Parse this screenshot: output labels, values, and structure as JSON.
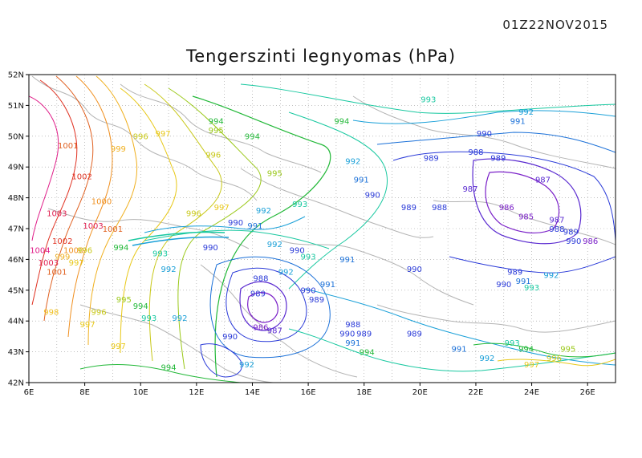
{
  "timestamp": "01Z22NOV2015",
  "title": "Tengerszinti legnyomas (hPa)",
  "map": {
    "lon_range": [
      6,
      27
    ],
    "lat_range": [
      42,
      52
    ],
    "lon_ticks": [
      "6E",
      "8E",
      "10E",
      "12E",
      "14E",
      "16E",
      "18E",
      "20E",
      "22E",
      "24E",
      "26E"
    ],
    "lat_ticks": [
      "52N",
      "51N",
      "50N",
      "49N",
      "48N",
      "47N",
      "46N",
      "45N",
      "44N",
      "43N",
      "42N"
    ],
    "grid": true,
    "field": "sea level pressure",
    "units": "hPa",
    "color_scale": [
      "#7a20c8",
      "#2a3ad8",
      "#1aa0d8",
      "#18c8a0",
      "#22b838",
      "#9ac818",
      "#e8c818",
      "#f09020",
      "#e03020",
      "#e0208a"
    ],
    "isobar_labels": [
      {
        "text": "993",
        "lon": 20.3,
        "lat": 51.1,
        "color": "#18c8a0"
      },
      {
        "text": "994",
        "lon": 12.7,
        "lat": 50.4,
        "color": "#22b838"
      },
      {
        "text": "994",
        "lon": 17.2,
        "lat": 50.4,
        "color": "#22b838"
      },
      {
        "text": "994",
        "lon": 14.0,
        "lat": 49.9,
        "color": "#22b838"
      },
      {
        "text": "995",
        "lon": 12.7,
        "lat": 50.1,
        "color": "#9ac818"
      },
      {
        "text": "996",
        "lon": 10.0,
        "lat": 49.9,
        "color": "#c8c818"
      },
      {
        "text": "997",
        "lon": 10.8,
        "lat": 50.0,
        "color": "#e8c818"
      },
      {
        "text": "996",
        "lon": 12.6,
        "lat": 49.3,
        "color": "#c8c818"
      },
      {
        "text": "995",
        "lon": 14.8,
        "lat": 48.7,
        "color": "#9ac818"
      },
      {
        "text": "999",
        "lon": 9.2,
        "lat": 49.5,
        "color": "#f0b020"
      },
      {
        "text": "1001",
        "lon": 7.4,
        "lat": 49.6,
        "color": "#e06020"
      },
      {
        "text": "1002",
        "lon": 7.9,
        "lat": 48.6,
        "color": "#e03020"
      },
      {
        "text": "1000",
        "lon": 8.6,
        "lat": 47.8,
        "color": "#f09020"
      },
      {
        "text": "1003",
        "lon": 7.0,
        "lat": 47.4,
        "color": "#e02050"
      },
      {
        "text": "1003",
        "lon": 8.3,
        "lat": 47.0,
        "color": "#e02050"
      },
      {
        "text": "1001",
        "lon": 9.0,
        "lat": 46.9,
        "color": "#e06020"
      },
      {
        "text": "1002",
        "lon": 7.2,
        "lat": 46.5,
        "color": "#e03020"
      },
      {
        "text": "1004",
        "lon": 6.4,
        "lat": 46.2,
        "color": "#e0208a"
      },
      {
        "text": "1000",
        "lon": 7.6,
        "lat": 46.2,
        "color": "#f09020"
      },
      {
        "text": "999",
        "lon": 7.2,
        "lat": 46.0,
        "color": "#f0b020"
      },
      {
        "text": "1003",
        "lon": 6.7,
        "lat": 45.8,
        "color": "#e02050"
      },
      {
        "text": "1001",
        "lon": 7.0,
        "lat": 45.5,
        "color": "#e06020"
      },
      {
        "text": "997",
        "lon": 7.7,
        "lat": 45.8,
        "color": "#e8c818"
      },
      {
        "text": "996",
        "lon": 8.0,
        "lat": 46.2,
        "color": "#c8c818"
      },
      {
        "text": "994",
        "lon": 9.3,
        "lat": 46.3,
        "color": "#22b838"
      },
      {
        "text": "993",
        "lon": 10.7,
        "lat": 46.1,
        "color": "#18c8a0"
      },
      {
        "text": "992",
        "lon": 11.0,
        "lat": 45.6,
        "color": "#1aa0d8"
      },
      {
        "text": "996",
        "lon": 11.9,
        "lat": 47.4,
        "color": "#c8c818"
      },
      {
        "text": "997",
        "lon": 12.9,
        "lat": 47.6,
        "color": "#e8c818"
      },
      {
        "text": "992",
        "lon": 14.4,
        "lat": 47.5,
        "color": "#1aa0d8"
      },
      {
        "text": "993",
        "lon": 15.7,
        "lat": 47.7,
        "color": "#18c8a0"
      },
      {
        "text": "991",
        "lon": 14.1,
        "lat": 47.0,
        "color": "#1a70d8"
      },
      {
        "text": "990",
        "lon": 13.4,
        "lat": 47.1,
        "color": "#2a3ad8"
      },
      {
        "text": "990",
        "lon": 15.6,
        "lat": 46.2,
        "color": "#2a3ad8"
      },
      {
        "text": "992",
        "lon": 14.8,
        "lat": 46.4,
        "color": "#1aa0d8"
      },
      {
        "text": "993",
        "lon": 16.0,
        "lat": 46.0,
        "color": "#18c8a0"
      },
      {
        "text": "990",
        "lon": 12.5,
        "lat": 46.3,
        "color": "#2a3ad8"
      },
      {
        "text": "995",
        "lon": 9.4,
        "lat": 44.6,
        "color": "#9ac818"
      },
      {
        "text": "994",
        "lon": 10.0,
        "lat": 44.4,
        "color": "#22b838"
      },
      {
        "text": "993",
        "lon": 10.3,
        "lat": 44.0,
        "color": "#18c8a0"
      },
      {
        "text": "992",
        "lon": 11.4,
        "lat": 44.0,
        "color": "#1aa0d8"
      },
      {
        "text": "996",
        "lon": 8.5,
        "lat": 44.2,
        "color": "#c8c818"
      },
      {
        "text": "997",
        "lon": 8.1,
        "lat": 43.8,
        "color": "#e8c818"
      },
      {
        "text": "998",
        "lon": 6.8,
        "lat": 44.2,
        "color": "#f0c020"
      },
      {
        "text": "997",
        "lon": 9.2,
        "lat": 43.1,
        "color": "#e8c818"
      },
      {
        "text": "994",
        "lon": 11.0,
        "lat": 42.4,
        "color": "#22b838"
      },
      {
        "text": "988",
        "lon": 14.3,
        "lat": 45.3,
        "color": "#2a3ad8"
      },
      {
        "text": "989",
        "lon": 14.2,
        "lat": 44.8,
        "color": "#2a3ad8"
      },
      {
        "text": "986",
        "lon": 14.3,
        "lat": 43.7,
        "color": "#7a20c8"
      },
      {
        "text": "987",
        "lon": 14.8,
        "lat": 43.6,
        "color": "#5a2ad0"
      },
      {
        "text": "990",
        "lon": 13.2,
        "lat": 43.4,
        "color": "#2a3ad8"
      },
      {
        "text": "989",
        "lon": 16.3,
        "lat": 44.6,
        "color": "#2a3ad8"
      },
      {
        "text": "990",
        "lon": 16.0,
        "lat": 44.9,
        "color": "#2a3ad8"
      },
      {
        "text": "991",
        "lon": 16.7,
        "lat": 45.1,
        "color": "#1a70d8"
      },
      {
        "text": "992",
        "lon": 15.2,
        "lat": 45.5,
        "color": "#1aa0d8"
      },
      {
        "text": "991",
        "lon": 17.4,
        "lat": 45.9,
        "color": "#1a70d8"
      },
      {
        "text": "992",
        "lon": 13.8,
        "lat": 42.5,
        "color": "#1aa0d8"
      },
      {
        "text": "988",
        "lon": 17.6,
        "lat": 43.8,
        "color": "#2a3ad8"
      },
      {
        "text": "990",
        "lon": 17.4,
        "lat": 43.5,
        "color": "#2a3ad8"
      },
      {
        "text": "989",
        "lon": 18.0,
        "lat": 43.5,
        "color": "#2a3ad8"
      },
      {
        "text": "991",
        "lon": 17.6,
        "lat": 43.2,
        "color": "#1a70d8"
      },
      {
        "text": "994",
        "lon": 18.1,
        "lat": 42.9,
        "color": "#22b838"
      },
      {
        "text": "989",
        "lon": 19.8,
        "lat": 43.5,
        "color": "#2a3ad8"
      },
      {
        "text": "990",
        "lon": 19.8,
        "lat": 45.6,
        "color": "#2a3ad8"
      },
      {
        "text": "992",
        "lon": 17.6,
        "lat": 49.1,
        "color": "#1aa0d8"
      },
      {
        "text": "991",
        "lon": 17.9,
        "lat": 48.5,
        "color": "#1a70d8"
      },
      {
        "text": "990",
        "lon": 18.3,
        "lat": 48.0,
        "color": "#2a3ad8"
      },
      {
        "text": "989",
        "lon": 19.6,
        "lat": 47.6,
        "color": "#2a3ad8"
      },
      {
        "text": "988",
        "lon": 20.7,
        "lat": 47.6,
        "color": "#2a3ad8"
      },
      {
        "text": "989",
        "lon": 20.4,
        "lat": 49.2,
        "color": "#2a3ad8"
      },
      {
        "text": "988",
        "lon": 22.0,
        "lat": 49.4,
        "color": "#2a3ad8"
      },
      {
        "text": "989",
        "lon": 22.8,
        "lat": 49.2,
        "color": "#2a3ad8"
      },
      {
        "text": "987",
        "lon": 21.8,
        "lat": 48.2,
        "color": "#5a2ad0"
      },
      {
        "text": "987",
        "lon": 24.4,
        "lat": 48.5,
        "color": "#5a2ad0"
      },
      {
        "text": "986",
        "lon": 23.1,
        "lat": 47.6,
        "color": "#7a20c8"
      },
      {
        "text": "985",
        "lon": 23.8,
        "lat": 47.3,
        "color": "#7a20c8"
      },
      {
        "text": "987",
        "lon": 24.9,
        "lat": 47.2,
        "color": "#5a2ad0"
      },
      {
        "text": "988",
        "lon": 24.9,
        "lat": 46.9,
        "color": "#2a3ad8"
      },
      {
        "text": "989",
        "lon": 25.4,
        "lat": 46.8,
        "color": "#2a3ad8"
      },
      {
        "text": "990",
        "lon": 25.5,
        "lat": 46.5,
        "color": "#2a3ad8"
      },
      {
        "text": "986",
        "lon": 26.1,
        "lat": 46.5,
        "color": "#7a20c8"
      },
      {
        "text": "990",
        "lon": 22.3,
        "lat": 50.0,
        "color": "#2a3ad8"
      },
      {
        "text": "991",
        "lon": 23.5,
        "lat": 50.4,
        "color": "#1a70d8"
      },
      {
        "text": "992",
        "lon": 23.8,
        "lat": 50.7,
        "color": "#1aa0d8"
      },
      {
        "text": "993",
        "lon": 23.3,
        "lat": 43.2,
        "color": "#18c8a0"
      },
      {
        "text": "994",
        "lon": 23.8,
        "lat": 43.0,
        "color": "#22b838"
      },
      {
        "text": "995",
        "lon": 25.3,
        "lat": 43.0,
        "color": "#9ac818"
      },
      {
        "text": "996",
        "lon": 24.8,
        "lat": 42.7,
        "color": "#c8c818"
      },
      {
        "text": "997",
        "lon": 24.0,
        "lat": 42.5,
        "color": "#e8c818"
      },
      {
        "text": "992",
        "lon": 22.4,
        "lat": 42.7,
        "color": "#1aa0d8"
      },
      {
        "text": "991",
        "lon": 21.4,
        "lat": 43.0,
        "color": "#1a70d8"
      },
      {
        "text": "989",
        "lon": 23.4,
        "lat": 45.5,
        "color": "#2a3ad8"
      },
      {
        "text": "990",
        "lon": 23.0,
        "lat": 45.1,
        "color": "#2a3ad8"
      },
      {
        "text": "991",
        "lon": 23.7,
        "lat": 45.2,
        "color": "#1a70d8"
      },
      {
        "text": "993",
        "lon": 24.0,
        "lat": 45.0,
        "color": "#18c8a0"
      },
      {
        "text": "992",
        "lon": 24.7,
        "lat": 45.4,
        "color": "#1aa0d8"
      }
    ]
  }
}
